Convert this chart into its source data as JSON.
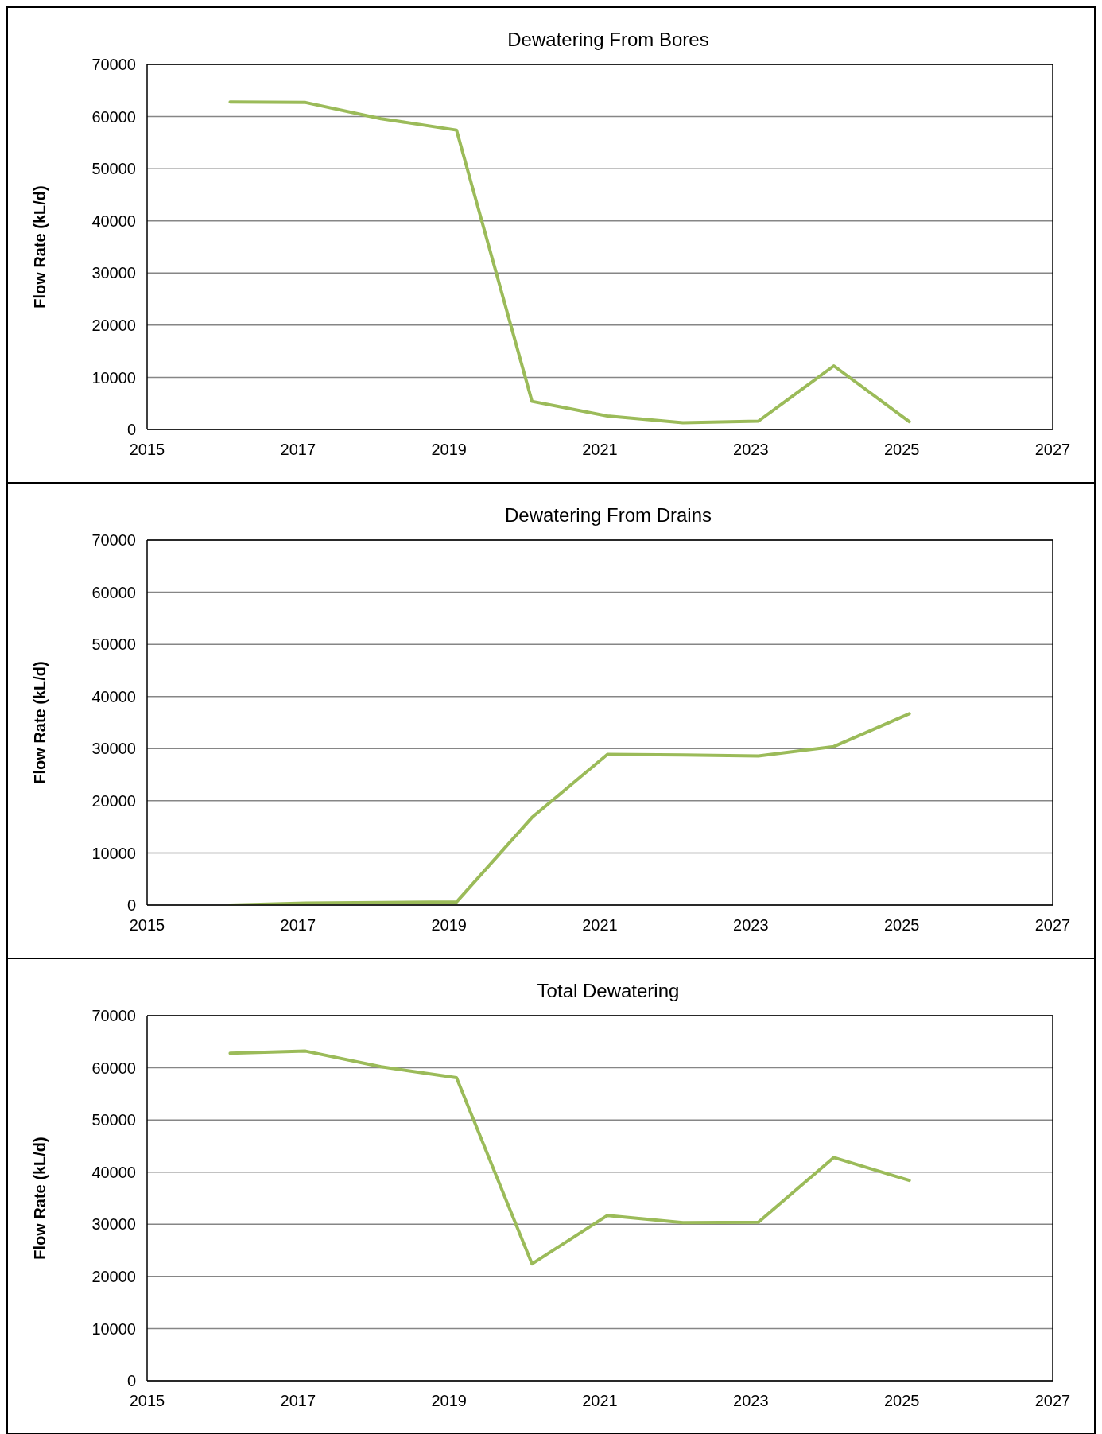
{
  "chart_data": [
    {
      "type": "line",
      "title": "Dewatering From Bores",
      "ylabel": "Flow Rate (kL/d)",
      "x": [
        2016.1,
        2017.1,
        2018.1,
        2019.1,
        2020.1,
        2021.1,
        2022.1,
        2023.1,
        2024.1,
        2025.1
      ],
      "series": [
        {
          "color": "#9bbb59",
          "values": [
            62800,
            62700,
            59600,
            57400,
            5400,
            2600,
            1300,
            1600,
            12200,
            1500
          ]
        }
      ],
      "xlim": [
        2015,
        2027
      ],
      "xticks": [
        2015,
        2017,
        2019,
        2021,
        2023,
        2025,
        2027
      ],
      "ylim": [
        0,
        70000
      ],
      "yticks": [
        0,
        10000,
        20000,
        30000,
        40000,
        50000,
        60000,
        70000
      ],
      "grid": "y",
      "marker": "none",
      "line_style": "solid"
    },
    {
      "type": "line",
      "title": "Dewatering From Drains",
      "ylabel": "Flow Rate (kL/d)",
      "x": [
        2016.1,
        2017.1,
        2018.1,
        2019.1,
        2020.1,
        2021.1,
        2022.1,
        2023.1,
        2024.1,
        2025.1
      ],
      "series": [
        {
          "color": "#9bbb59",
          "values": [
            0,
            400,
            500,
            600,
            16800,
            28900,
            28800,
            28600,
            30400,
            36700
          ]
        }
      ],
      "xlim": [
        2015,
        2027
      ],
      "xticks": [
        2015,
        2017,
        2019,
        2021,
        2023,
        2025,
        2027
      ],
      "ylim": [
        0,
        70000
      ],
      "yticks": [
        0,
        10000,
        20000,
        30000,
        40000,
        50000,
        60000,
        70000
      ],
      "grid": "y",
      "marker": "none",
      "line_style": "solid"
    },
    {
      "type": "line",
      "title": "Total Dewatering",
      "ylabel": "Flow Rate (kL/d)",
      "x": [
        2016.1,
        2017.1,
        2018.1,
        2019.1,
        2020.1,
        2021.1,
        2022.1,
        2023.1,
        2024.1,
        2025.1
      ],
      "series": [
        {
          "color": "#9bbb59",
          "values": [
            62800,
            63200,
            60200,
            58100,
            22400,
            31700,
            30300,
            30400,
            42800,
            38400
          ]
        }
      ],
      "xlim": [
        2015,
        2027
      ],
      "xticks": [
        2015,
        2017,
        2019,
        2021,
        2023,
        2025,
        2027
      ],
      "ylim": [
        0,
        70000
      ],
      "yticks": [
        0,
        10000,
        20000,
        30000,
        40000,
        50000,
        60000,
        70000
      ],
      "grid": "y",
      "marker": "none",
      "line_style": "solid"
    }
  ]
}
